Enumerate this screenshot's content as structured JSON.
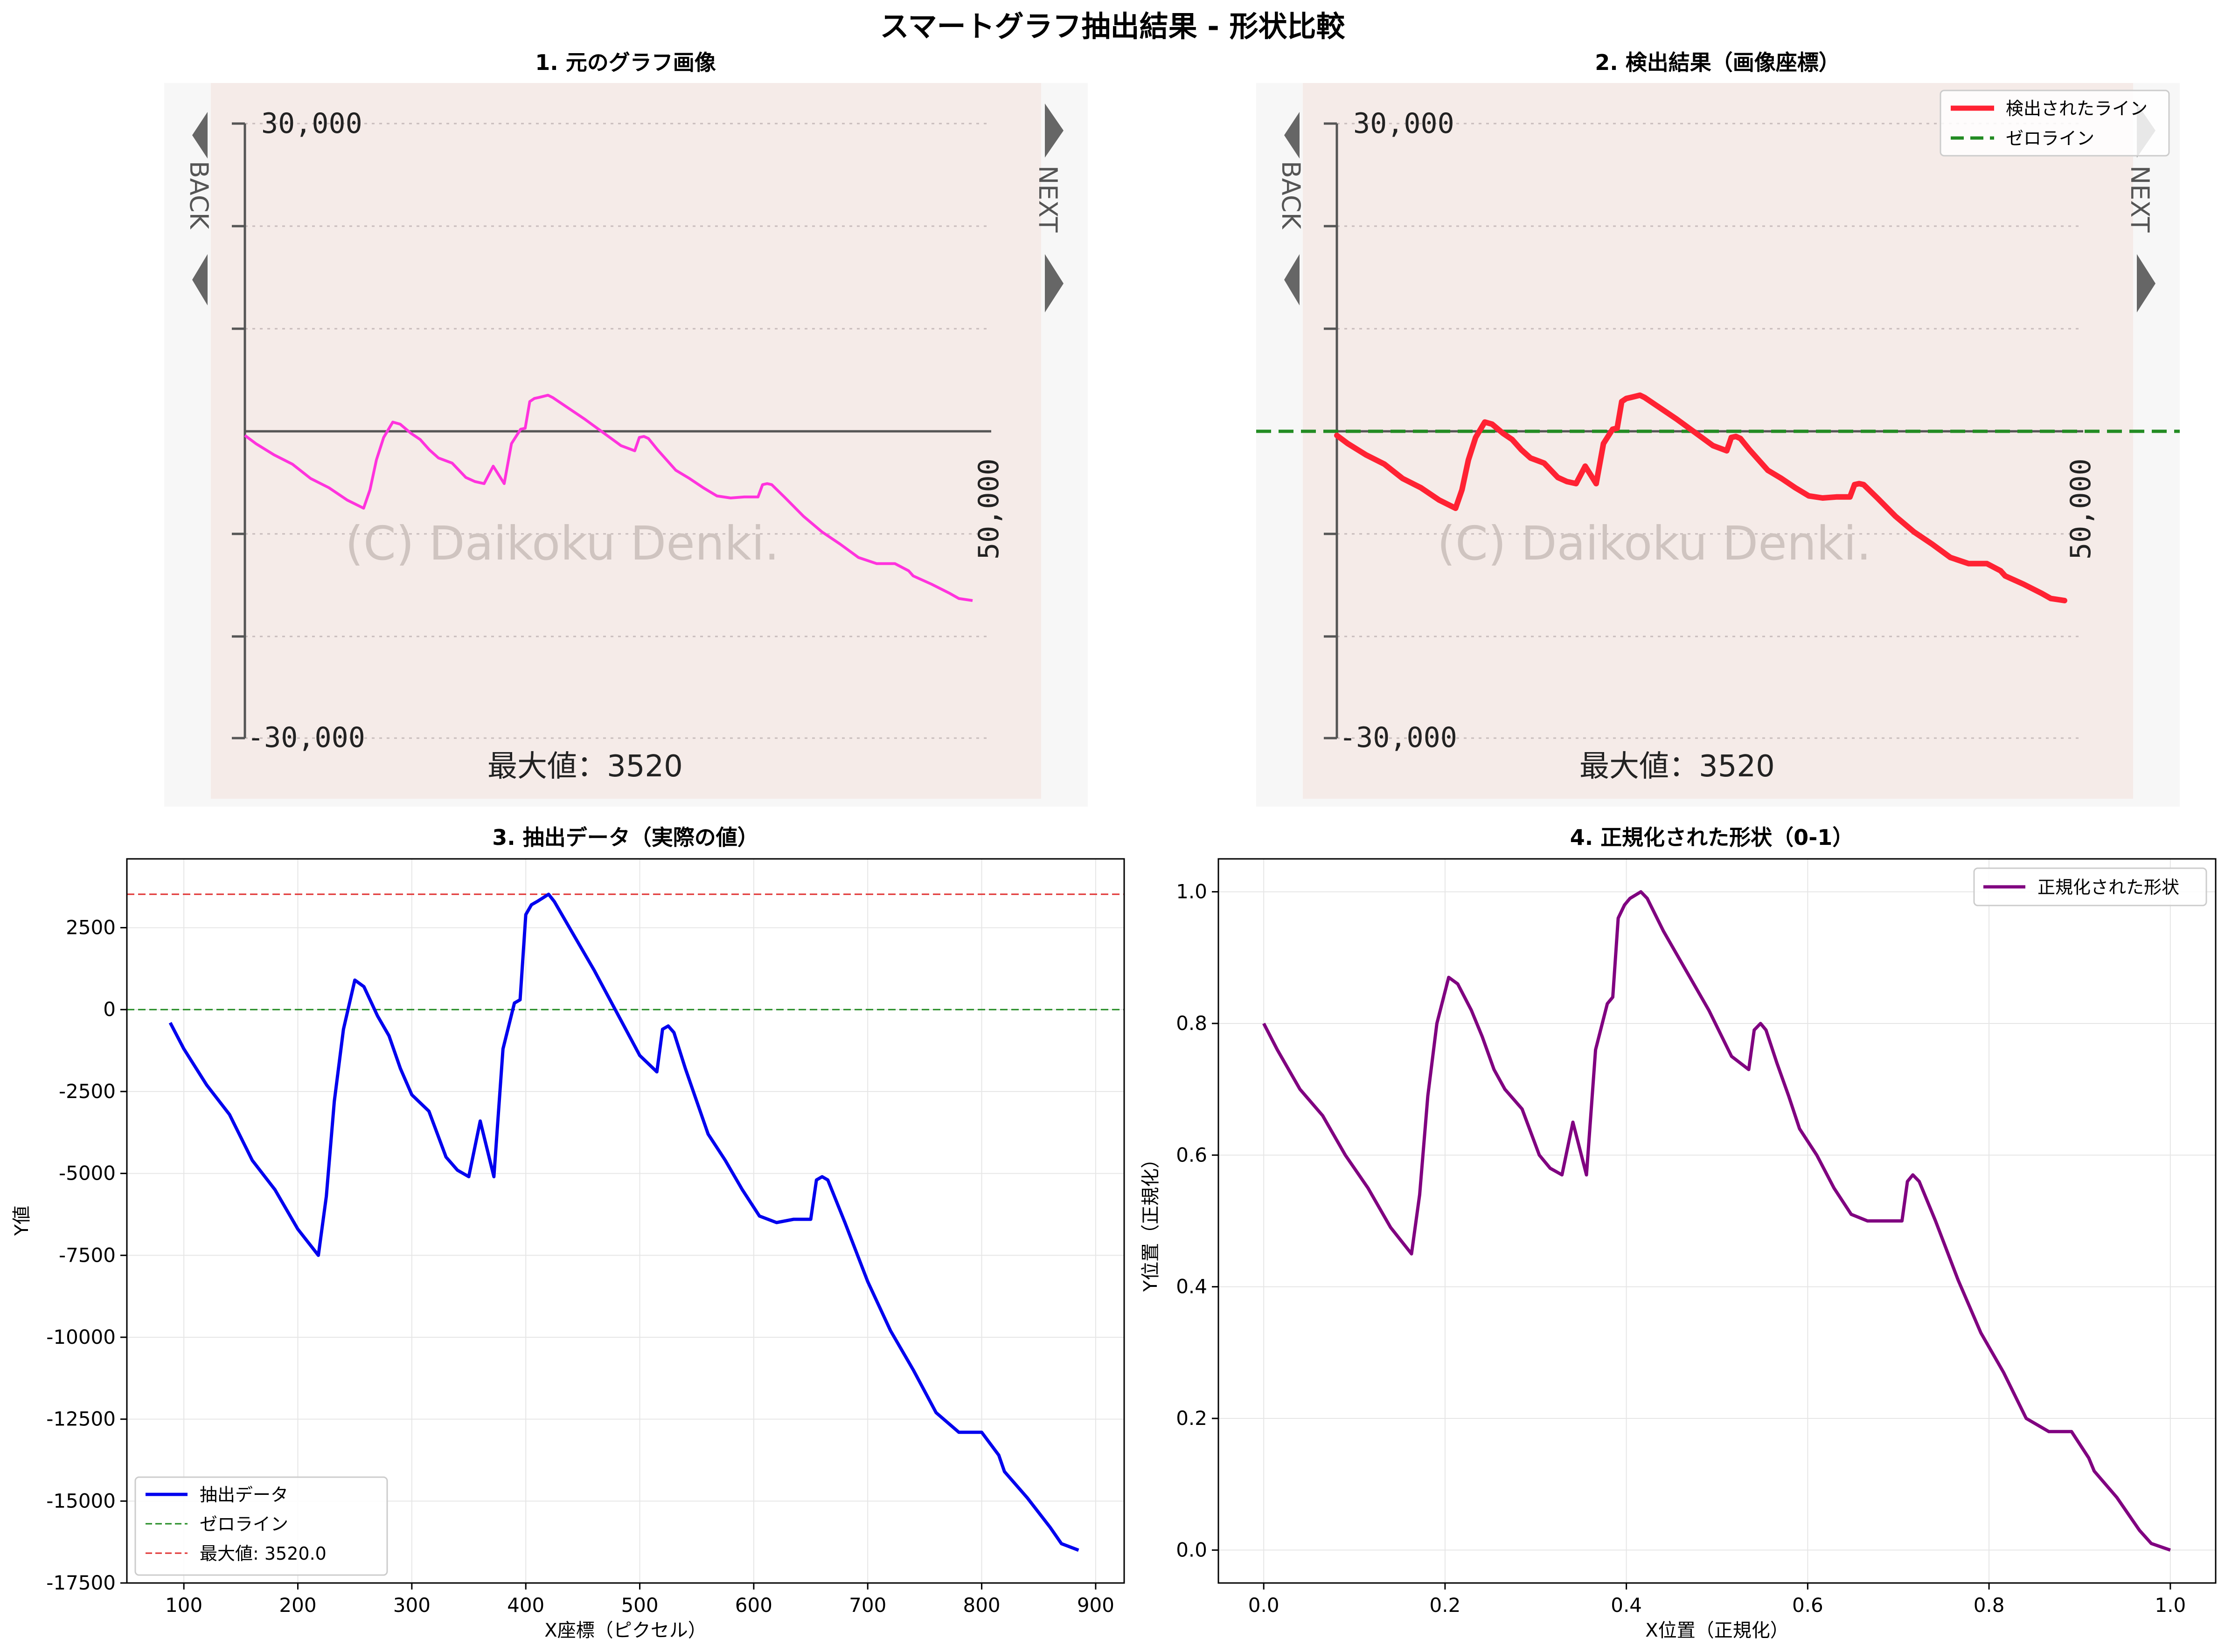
{
  "suptitle": "スマートグラフ抽出結果 - 形状比較",
  "colors": {
    "pink_line": "#ff33dd",
    "red_line": "#ff2233",
    "blue_line": "#0000ee",
    "purple_line": "#800080",
    "zero_green": "#228b22",
    "max_red": "#e03030",
    "graph_bg": "#f5ebe8"
  },
  "panel1": {
    "title": "1. 元のグラフ画像",
    "image_text": {
      "y_top": "30,000",
      "y_bottom": "-30,000",
      "x_end": "50,000",
      "max_label": "最大値：3520",
      "watermark": "(C) Daikoku Denki.",
      "back": "BACK",
      "next": "NEXT"
    }
  },
  "panel2": {
    "title": "2. 検出結果（画像座標）",
    "legend": [
      "検出されたライン",
      "ゼロライン"
    ]
  },
  "panel3": {
    "title": "3. 抽出データ（実際の値）",
    "xlabel": "X座標（ピクセル）",
    "ylabel": "Y値",
    "xticks": [
      "100",
      "200",
      "300",
      "400",
      "500",
      "600",
      "700",
      "800",
      "900"
    ],
    "yticks": [
      "2500",
      "0",
      "-2500",
      "-5000",
      "-7500",
      "-10000",
      "-12500",
      "-15000",
      "-17500"
    ],
    "legend": [
      "抽出データ",
      "ゼロライン",
      "最大値: 3520.0"
    ]
  },
  "panel4": {
    "title": "4. 正規化された形状（0-1）",
    "xlabel": "X位置（正規化）",
    "ylabel": "Y位置（正規化）",
    "xticks": [
      "0.0",
      "0.2",
      "0.4",
      "0.6",
      "0.8",
      "1.0"
    ],
    "yticks": [
      "0.0",
      "0.2",
      "0.4",
      "0.6",
      "0.8",
      "1.0"
    ],
    "legend": [
      "正規化された形状"
    ]
  },
  "chart_data": [
    {
      "type": "line",
      "title": "3. 抽出データ（実際の値）",
      "xlabel": "X座標（ピクセル）",
      "ylabel": "Y値",
      "xlim": [
        50,
        925
      ],
      "ylim": [
        -17500,
        4600
      ],
      "grid": true,
      "legend_position": "lower-left",
      "series": [
        {
          "name": "抽出データ",
          "x": [
            88,
            100,
            120,
            140,
            160,
            180,
            200,
            218,
            225,
            232,
            240,
            250,
            258,
            270,
            280,
            290,
            300,
            315,
            330,
            340,
            350,
            360,
            372,
            380,
            390,
            395,
            400,
            405,
            410,
            420,
            425,
            440,
            460,
            480,
            500,
            515,
            520,
            525,
            530,
            540,
            550,
            560,
            575,
            590,
            605,
            620,
            635,
            650,
            655,
            660,
            665,
            680,
            700,
            720,
            740,
            760,
            780,
            800,
            815,
            820,
            840,
            860,
            870,
            885
          ],
          "y": [
            -400,
            -1200,
            -2300,
            -3200,
            -4600,
            -5500,
            -6700,
            -7500,
            -5700,
            -2800,
            -600,
            900,
            700,
            -200,
            -800,
            -1800,
            -2600,
            -3100,
            -4500,
            -4900,
            -5100,
            -3400,
            -5100,
            -1200,
            200,
            300,
            2900,
            3200,
            3300,
            3520,
            3300,
            2400,
            1200,
            -100,
            -1400,
            -1900,
            -600,
            -500,
            -700,
            -1800,
            -2800,
            -3800,
            -4600,
            -5500,
            -6300,
            -6500,
            -6400,
            -6400,
            -5200,
            -5100,
            -5200,
            -6500,
            -8300,
            -9800,
            -11000,
            -12300,
            -12900,
            -12900,
            -13600,
            -14100,
            -14900,
            -15800,
            -16300,
            -16500
          ]
        },
        {
          "name": "ゼロライン",
          "y": 0
        },
        {
          "name": "最大値: 3520.0",
          "y": 3520
        }
      ]
    },
    {
      "type": "line",
      "title": "4. 正規化された形状（0-1）",
      "xlabel": "X位置（正規化）",
      "ylabel": "Y位置（正規化）",
      "xlim": [
        -0.05,
        1.05
      ],
      "ylim": [
        -0.05,
        1.05
      ],
      "grid": true,
      "legend_position": "top-right",
      "series": [
        {
          "name": "正規化された形状",
          "x": [
            0.0,
            0.015,
            0.04,
            0.065,
            0.09,
            0.115,
            0.14,
            0.163,
            0.172,
            0.181,
            0.191,
            0.204,
            0.214,
            0.229,
            0.241,
            0.254,
            0.266,
            0.285,
            0.304,
            0.316,
            0.329,
            0.341,
            0.356,
            0.366,
            0.379,
            0.385,
            0.391,
            0.398,
            0.404,
            0.416,
            0.423,
            0.441,
            0.466,
            0.491,
            0.516,
            0.535,
            0.541,
            0.548,
            0.554,
            0.566,
            0.579,
            0.591,
            0.61,
            0.629,
            0.648,
            0.666,
            0.685,
            0.704,
            0.71,
            0.716,
            0.723,
            0.741,
            0.766,
            0.791,
            0.816,
            0.841,
            0.866,
            0.891,
            0.91,
            0.916,
            0.941,
            0.966,
            0.979,
            1.0
          ],
          "y": [
            0.8,
            0.76,
            0.7,
            0.66,
            0.6,
            0.55,
            0.49,
            0.45,
            0.54,
            0.69,
            0.8,
            0.87,
            0.86,
            0.82,
            0.78,
            0.73,
            0.7,
            0.67,
            0.6,
            0.58,
            0.57,
            0.65,
            0.57,
            0.76,
            0.83,
            0.84,
            0.96,
            0.98,
            0.99,
            1.0,
            0.99,
            0.94,
            0.88,
            0.82,
            0.75,
            0.73,
            0.79,
            0.8,
            0.79,
            0.74,
            0.69,
            0.64,
            0.6,
            0.55,
            0.51,
            0.5,
            0.5,
            0.5,
            0.56,
            0.57,
            0.56,
            0.5,
            0.41,
            0.33,
            0.27,
            0.2,
            0.18,
            0.18,
            0.14,
            0.12,
            0.08,
            0.03,
            0.01,
            0.0
          ]
        }
      ]
    }
  ]
}
